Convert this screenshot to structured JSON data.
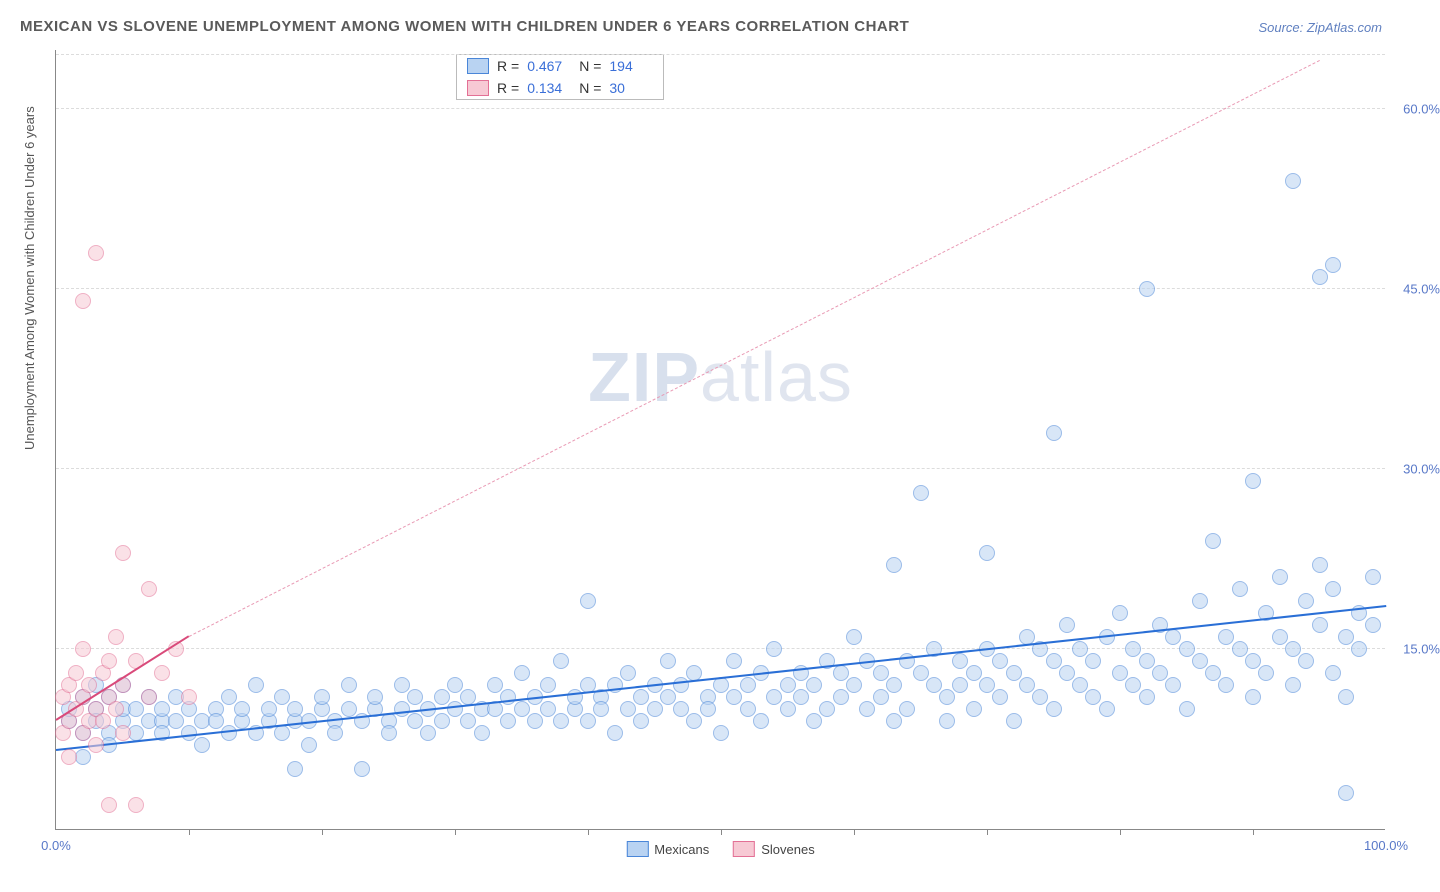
{
  "title": "MEXICAN VS SLOVENE UNEMPLOYMENT AMONG WOMEN WITH CHILDREN UNDER 6 YEARS CORRELATION CHART",
  "source": "Source: ZipAtlas.com",
  "ylabel": "Unemployment Among Women with Children Under 6 years",
  "watermark": {
    "part1": "ZIP",
    "part2": "atlas"
  },
  "chart": {
    "type": "scatter",
    "xlim": [
      0,
      100
    ],
    "ylim": [
      0,
      65
    ],
    "x_ticks": [
      0,
      100
    ],
    "x_tick_labels": [
      "0.0%",
      "100.0%"
    ],
    "x_minor_ticks": [
      10,
      20,
      30,
      40,
      50,
      60,
      70,
      80,
      90
    ],
    "y_ticks": [
      15,
      30,
      45,
      60
    ],
    "y_tick_labels": [
      "15.0%",
      "30.0%",
      "45.0%",
      "60.0%"
    ],
    "background_color": "#ffffff",
    "grid_color": "#dcdcdc",
    "marker_radius": 8,
    "marker_stroke_width": 1.2,
    "series": [
      {
        "name": "Mexicans",
        "fill": "#b9d3f2",
        "stroke": "#4a86d8",
        "fill_opacity": 0.55,
        "R": "0.467",
        "N": "194",
        "trend": {
          "x1": 0,
          "y1": 6.5,
          "x2": 100,
          "y2": 18.5,
          "color": "#2a6fd6",
          "width": 2.5,
          "dash": "solid"
        },
        "trend_ext": null,
        "points": [
          [
            1,
            9
          ],
          [
            1,
            10
          ],
          [
            2,
            8
          ],
          [
            2,
            11
          ],
          [
            2,
            6
          ],
          [
            3,
            10
          ],
          [
            3,
            9
          ],
          [
            3,
            12
          ],
          [
            4,
            8
          ],
          [
            4,
            11
          ],
          [
            4,
            7
          ],
          [
            5,
            9
          ],
          [
            5,
            10
          ],
          [
            5,
            12
          ],
          [
            6,
            8
          ],
          [
            6,
            10
          ],
          [
            7,
            9
          ],
          [
            7,
            11
          ],
          [
            8,
            9
          ],
          [
            8,
            8
          ],
          [
            8,
            10
          ],
          [
            9,
            9
          ],
          [
            9,
            11
          ],
          [
            10,
            8
          ],
          [
            10,
            10
          ],
          [
            11,
            9
          ],
          [
            11,
            7
          ],
          [
            12,
            10
          ],
          [
            12,
            9
          ],
          [
            13,
            8
          ],
          [
            13,
            11
          ],
          [
            14,
            9
          ],
          [
            14,
            10
          ],
          [
            15,
            8
          ],
          [
            15,
            12
          ],
          [
            16,
            9
          ],
          [
            16,
            10
          ],
          [
            17,
            8
          ],
          [
            17,
            11
          ],
          [
            18,
            9
          ],
          [
            18,
            10
          ],
          [
            18,
            5
          ],
          [
            19,
            9
          ],
          [
            19,
            7
          ],
          [
            20,
            10
          ],
          [
            20,
            11
          ],
          [
            21,
            9
          ],
          [
            21,
            8
          ],
          [
            22,
            10
          ],
          [
            22,
            12
          ],
          [
            23,
            9
          ],
          [
            23,
            5
          ],
          [
            24,
            10
          ],
          [
            24,
            11
          ],
          [
            25,
            9
          ],
          [
            25,
            8
          ],
          [
            26,
            10
          ],
          [
            26,
            12
          ],
          [
            27,
            9
          ],
          [
            27,
            11
          ],
          [
            28,
            10
          ],
          [
            28,
            8
          ],
          [
            29,
            11
          ],
          [
            29,
            9
          ],
          [
            30,
            10
          ],
          [
            30,
            12
          ],
          [
            31,
            9
          ],
          [
            31,
            11
          ],
          [
            32,
            10
          ],
          [
            32,
            8
          ],
          [
            33,
            12
          ],
          [
            33,
            10
          ],
          [
            34,
            9
          ],
          [
            34,
            11
          ],
          [
            35,
            10
          ],
          [
            35,
            13
          ],
          [
            36,
            9
          ],
          [
            36,
            11
          ],
          [
            37,
            10
          ],
          [
            37,
            12
          ],
          [
            38,
            9
          ],
          [
            38,
            14
          ],
          [
            39,
            10
          ],
          [
            39,
            11
          ],
          [
            40,
            12
          ],
          [
            40,
            9
          ],
          [
            40,
            19
          ],
          [
            41,
            11
          ],
          [
            41,
            10
          ],
          [
            42,
            12
          ],
          [
            42,
            8
          ],
          [
            43,
            10
          ],
          [
            43,
            13
          ],
          [
            44,
            11
          ],
          [
            44,
            9
          ],
          [
            45,
            12
          ],
          [
            45,
            10
          ],
          [
            46,
            11
          ],
          [
            46,
            14
          ],
          [
            47,
            10
          ],
          [
            47,
            12
          ],
          [
            48,
            13
          ],
          [
            48,
            9
          ],
          [
            49,
            11
          ],
          [
            49,
            10
          ],
          [
            50,
            12
          ],
          [
            50,
            8
          ],
          [
            51,
            11
          ],
          [
            51,
            14
          ],
          [
            52,
            10
          ],
          [
            52,
            12
          ],
          [
            53,
            13
          ],
          [
            53,
            9
          ],
          [
            54,
            11
          ],
          [
            54,
            15
          ],
          [
            55,
            12
          ],
          [
            55,
            10
          ],
          [
            56,
            13
          ],
          [
            56,
            11
          ],
          [
            57,
            12
          ],
          [
            57,
            9
          ],
          [
            58,
            14
          ],
          [
            58,
            10
          ],
          [
            59,
            11
          ],
          [
            59,
            13
          ],
          [
            60,
            12
          ],
          [
            60,
            16
          ],
          [
            61,
            10
          ],
          [
            61,
            14
          ],
          [
            62,
            13
          ],
          [
            62,
            11
          ],
          [
            63,
            12
          ],
          [
            63,
            9
          ],
          [
            63,
            22
          ],
          [
            64,
            14
          ],
          [
            64,
            10
          ],
          [
            65,
            13
          ],
          [
            65,
            28
          ],
          [
            66,
            12
          ],
          [
            66,
            15
          ],
          [
            67,
            11
          ],
          [
            67,
            9
          ],
          [
            68,
            14
          ],
          [
            68,
            12
          ],
          [
            69,
            13
          ],
          [
            69,
            10
          ],
          [
            70,
            12
          ],
          [
            70,
            15
          ],
          [
            70,
            23
          ],
          [
            71,
            11
          ],
          [
            71,
            14
          ],
          [
            72,
            13
          ],
          [
            72,
            9
          ],
          [
            73,
            16
          ],
          [
            73,
            12
          ],
          [
            74,
            11
          ],
          [
            74,
            15
          ],
          [
            75,
            14
          ],
          [
            75,
            10
          ],
          [
            75,
            33
          ],
          [
            76,
            13
          ],
          [
            76,
            17
          ],
          [
            77,
            12
          ],
          [
            77,
            15
          ],
          [
            78,
            14
          ],
          [
            78,
            11
          ],
          [
            79,
            16
          ],
          [
            79,
            10
          ],
          [
            80,
            13
          ],
          [
            80,
            18
          ],
          [
            81,
            12
          ],
          [
            81,
            15
          ],
          [
            82,
            14
          ],
          [
            82,
            11
          ],
          [
            82,
            45
          ],
          [
            83,
            17
          ],
          [
            83,
            13
          ],
          [
            84,
            12
          ],
          [
            84,
            16
          ],
          [
            85,
            15
          ],
          [
            85,
            10
          ],
          [
            86,
            14
          ],
          [
            86,
            19
          ],
          [
            87,
            13
          ],
          [
            87,
            24
          ],
          [
            88,
            16
          ],
          [
            88,
            12
          ],
          [
            89,
            15
          ],
          [
            89,
            20
          ],
          [
            90,
            14
          ],
          [
            90,
            11
          ],
          [
            90,
            29
          ],
          [
            91,
            18
          ],
          [
            91,
            13
          ],
          [
            92,
            16
          ],
          [
            92,
            21
          ],
          [
            93,
            15
          ],
          [
            93,
            12
          ],
          [
            93,
            54
          ],
          [
            94,
            19
          ],
          [
            94,
            14
          ],
          [
            95,
            17
          ],
          [
            95,
            22
          ],
          [
            95,
            46
          ],
          [
            96,
            13
          ],
          [
            96,
            20
          ],
          [
            96,
            47
          ],
          [
            97,
            16
          ],
          [
            97,
            11
          ],
          [
            97,
            3
          ],
          [
            98,
            18
          ],
          [
            98,
            15
          ],
          [
            99,
            17
          ],
          [
            99,
            21
          ]
        ]
      },
      {
        "name": "Slovenes",
        "fill": "#f7c9d4",
        "stroke": "#e37095",
        "fill_opacity": 0.55,
        "R": "0.134",
        "N": "30",
        "trend": {
          "x1": 0,
          "y1": 9,
          "x2": 10,
          "y2": 16,
          "color": "#d94a7a",
          "width": 2.2,
          "dash": "solid"
        },
        "trend_ext": {
          "x1": 10,
          "y1": 16,
          "x2": 95,
          "y2": 64,
          "color": "#e99ab4",
          "width": 1.3,
          "dash": "dashed"
        },
        "points": [
          [
            0.5,
            8
          ],
          [
            0.5,
            11
          ],
          [
            1,
            9
          ],
          [
            1,
            12
          ],
          [
            1,
            6
          ],
          [
            1.5,
            10
          ],
          [
            1.5,
            13
          ],
          [
            2,
            8
          ],
          [
            2,
            11
          ],
          [
            2,
            15
          ],
          [
            2.5,
            9
          ],
          [
            2.5,
            12
          ],
          [
            2,
            44
          ],
          [
            3,
            10
          ],
          [
            3,
            7
          ],
          [
            3,
            48
          ],
          [
            3.5,
            13
          ],
          [
            3.5,
            9
          ],
          [
            4,
            11
          ],
          [
            4,
            14
          ],
          [
            4,
            2
          ],
          [
            4.5,
            10
          ],
          [
            4.5,
            16
          ],
          [
            5,
            12
          ],
          [
            5,
            8
          ],
          [
            5,
            23
          ],
          [
            6,
            14
          ],
          [
            6,
            2
          ],
          [
            7,
            11
          ],
          [
            7,
            20
          ],
          [
            8,
            13
          ],
          [
            9,
            15
          ],
          [
            10,
            11
          ]
        ]
      }
    ],
    "legend_bottom": [
      {
        "label": "Mexicans",
        "fill": "#b9d3f2",
        "stroke": "#4a86d8"
      },
      {
        "label": "Slovenes",
        "fill": "#f7c9d4",
        "stroke": "#e37095"
      }
    ]
  }
}
